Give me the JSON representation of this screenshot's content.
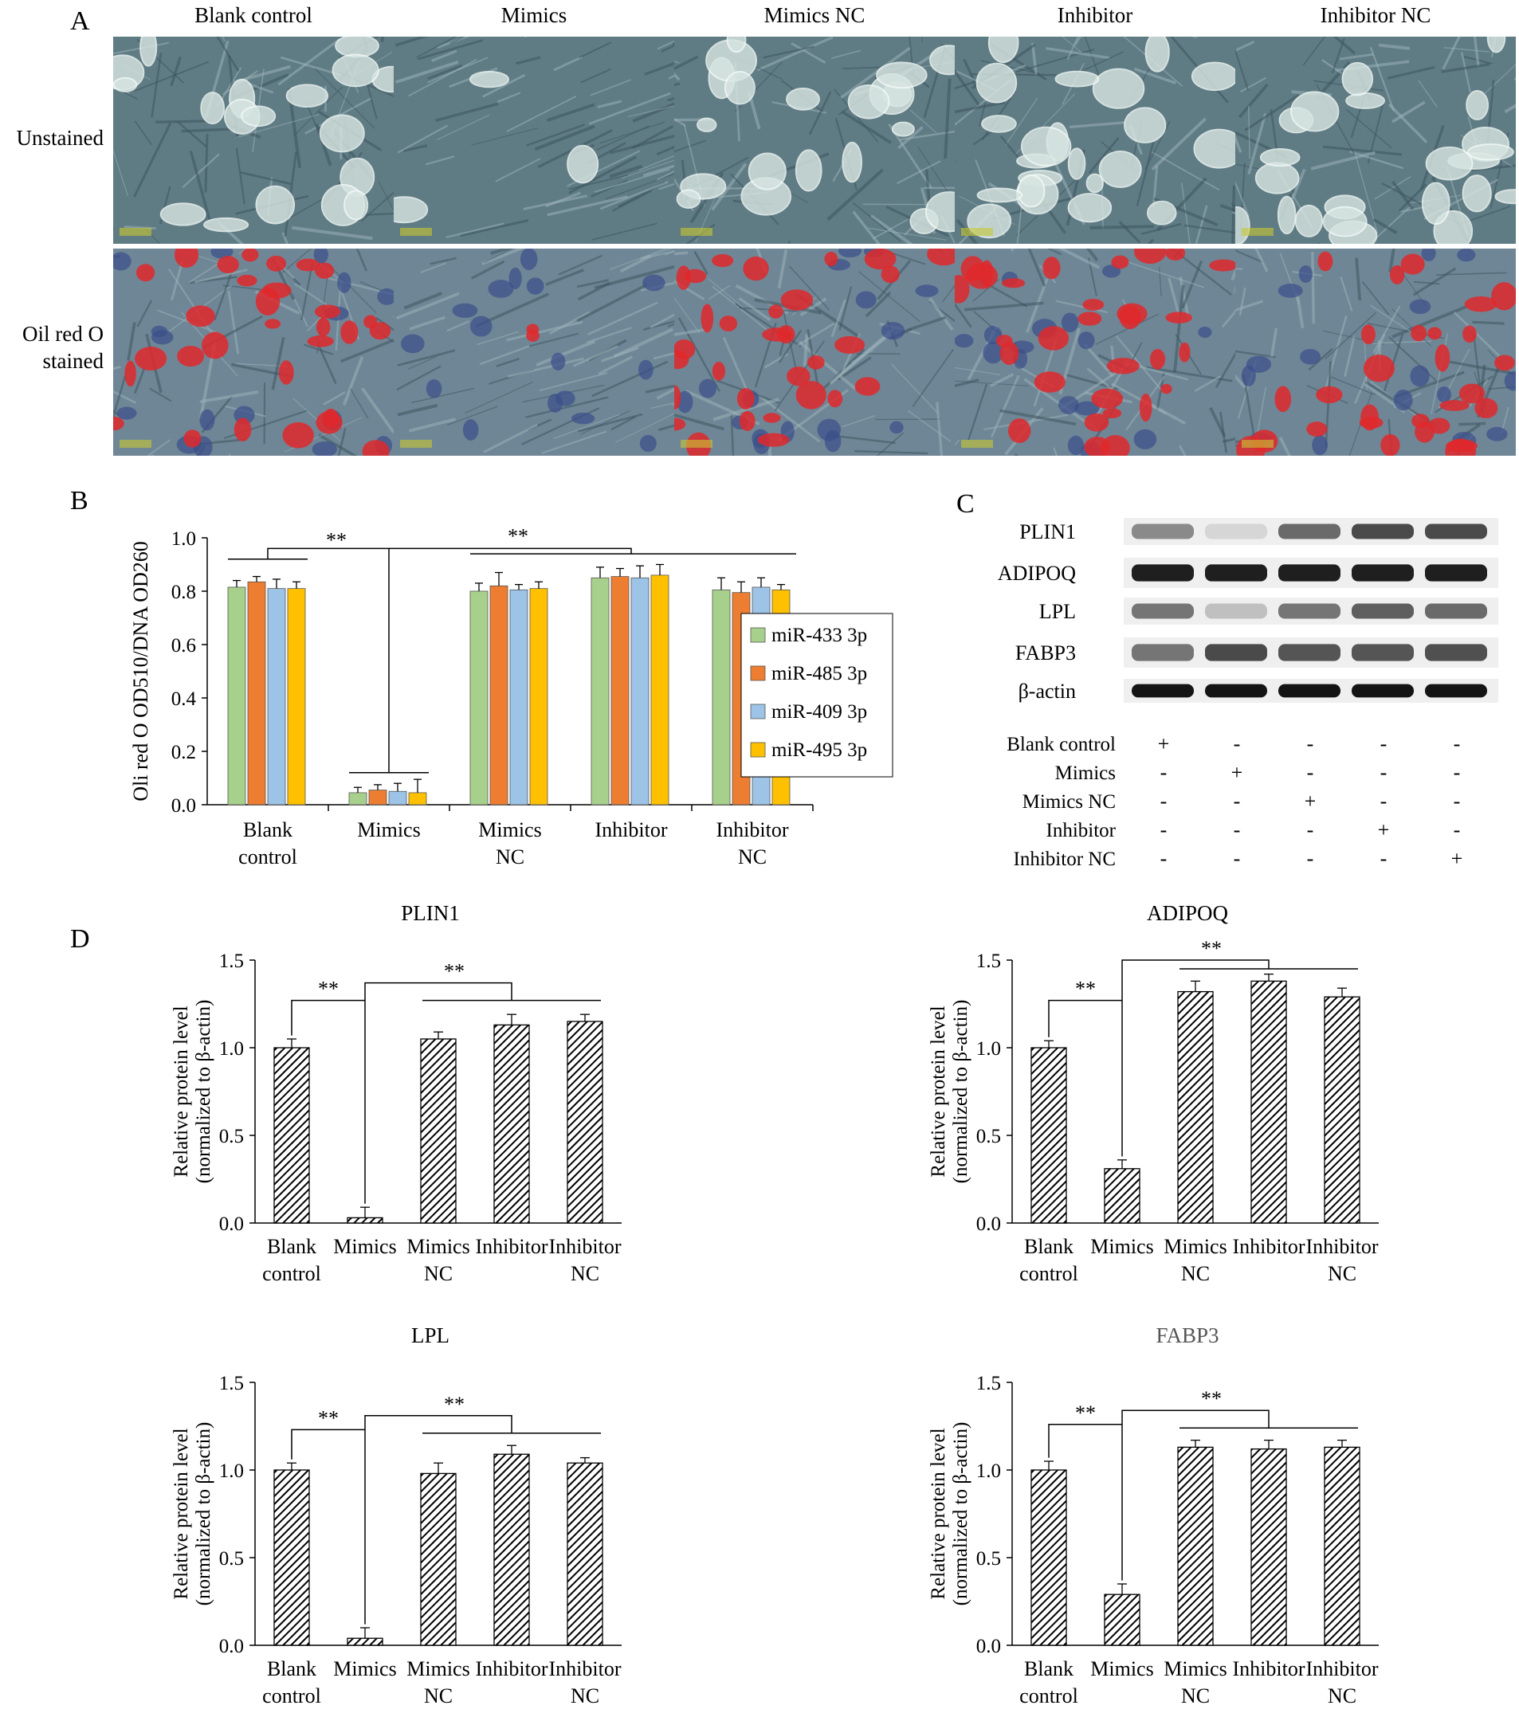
{
  "panels": {
    "a": "A",
    "b": "B",
    "c": "C",
    "d": "D"
  },
  "panel_a": {
    "columns": [
      "Blank control",
      "Mimics",
      "Mimics NC",
      "Inhibitor",
      "Inhibitor NC"
    ],
    "rows": [
      {
        "label_lines": [
          "Unstained"
        ]
      },
      {
        "label_lines": [
          "Oil red O",
          "stained"
        ]
      }
    ]
  },
  "chart_data": [
    {
      "type": "bar",
      "panel": "B",
      "ylabel": "Oli red O OD510/DNA OD260",
      "ylim": [
        0,
        1.0
      ],
      "yticks": [
        "0.0",
        "0.2",
        "0.4",
        "0.6",
        "0.8",
        "1.0"
      ],
      "categories": [
        [
          "Blank",
          "control"
        ],
        [
          "Mimics"
        ],
        [
          "Mimics",
          "NC"
        ],
        [
          "Inhibitor"
        ],
        [
          "Inhibitor",
          "NC"
        ]
      ],
      "series": [
        {
          "name": "miR-433 3p",
          "color": "#a8d08d",
          "values": [
            0.815,
            0.045,
            0.8,
            0.85,
            0.805
          ],
          "errors": [
            0.025,
            0.02,
            0.03,
            0.04,
            0.045
          ]
        },
        {
          "name": "miR-485 3p",
          "color": "#ed7d31",
          "values": [
            0.835,
            0.055,
            0.82,
            0.855,
            0.795
          ],
          "errors": [
            0.02,
            0.02,
            0.05,
            0.03,
            0.04
          ]
        },
        {
          "name": "miR-409 3p",
          "color": "#9dc3e6",
          "values": [
            0.81,
            0.05,
            0.805,
            0.85,
            0.815
          ],
          "errors": [
            0.035,
            0.03,
            0.02,
            0.045,
            0.035
          ]
        },
        {
          "name": "miR-495 3p",
          "color": "#ffc000",
          "values": [
            0.81,
            0.045,
            0.81,
            0.86,
            0.805
          ],
          "errors": [
            0.025,
            0.05,
            0.025,
            0.04,
            0.02
          ]
        }
      ],
      "significance": [
        {
          "label": "**",
          "from": 0,
          "to": 1
        },
        {
          "label": "**",
          "from": 1,
          "to": [
            2,
            3,
            4
          ]
        }
      ]
    },
    {
      "type": "bar",
      "panel": "D",
      "title": "PLIN1",
      "ylabel": "Relative protein level (normalized to β-actin)",
      "ylim": [
        0,
        1.5
      ],
      "yticks": [
        "0.0",
        "0.5",
        "1.0",
        "1.5"
      ],
      "categories": [
        [
          "Blank",
          "control"
        ],
        [
          "Mimics"
        ],
        [
          "Mimics",
          "NC"
        ],
        [
          "Inhibitor"
        ],
        [
          "Inhibitor",
          "NC"
        ]
      ],
      "values": [
        1.0,
        0.03,
        1.05,
        1.13,
        1.15
      ],
      "errors": [
        0.05,
        0.06,
        0.04,
        0.06,
        0.04
      ],
      "significance": [
        {
          "label": "**"
        },
        {
          "label": "**"
        }
      ]
    },
    {
      "type": "bar",
      "panel": "D",
      "title": "ADIPOQ",
      "ylabel": "Relative protein level (normalized to β-actin)",
      "ylim": [
        0,
        1.5
      ],
      "yticks": [
        "0.0",
        "0.5",
        "1.0",
        "1.5"
      ],
      "categories": [
        [
          "Blank",
          "control"
        ],
        [
          "Mimics"
        ],
        [
          "Mimics",
          "NC"
        ],
        [
          "Inhibitor"
        ],
        [
          "Inhibitor",
          "NC"
        ]
      ],
      "values": [
        1.0,
        0.31,
        1.32,
        1.38,
        1.29
      ],
      "errors": [
        0.04,
        0.05,
        0.06,
        0.04,
        0.05
      ],
      "significance": [
        {
          "label": "**"
        },
        {
          "label": "**"
        }
      ]
    },
    {
      "type": "bar",
      "panel": "D",
      "title": "LPL",
      "ylabel": "Relative protein level (normalized to β-actin)",
      "ylim": [
        0,
        1.5
      ],
      "yticks": [
        "0.0",
        "0.5",
        "1.0",
        "1.5"
      ],
      "categories": [
        [
          "Blank",
          "control"
        ],
        [
          "Mimics"
        ],
        [
          "Mimics",
          "NC"
        ],
        [
          "Inhibitor"
        ],
        [
          "Inhibitor",
          "NC"
        ]
      ],
      "values": [
        1.0,
        0.04,
        0.98,
        1.09,
        1.04
      ],
      "errors": [
        0.04,
        0.06,
        0.06,
        0.05,
        0.03
      ],
      "significance": [
        {
          "label": "**"
        },
        {
          "label": "**"
        }
      ]
    },
    {
      "type": "bar",
      "panel": "D",
      "title": "FABP3",
      "ylabel": "Relative protein level (normalized to β-actin)",
      "ylim": [
        0,
        1.5
      ],
      "yticks": [
        "0.0",
        "0.5",
        "1.0",
        "1.5"
      ],
      "categories": [
        [
          "Blank",
          "control"
        ],
        [
          "Mimics"
        ],
        [
          "Mimics",
          "NC"
        ],
        [
          "Inhibitor"
        ],
        [
          "Inhibitor",
          "NC"
        ]
      ],
      "values": [
        1.0,
        0.29,
        1.13,
        1.12,
        1.13
      ],
      "errors": [
        0.05,
        0.06,
        0.04,
        0.05,
        0.04
      ],
      "significance": [
        {
          "label": "**"
        },
        {
          "label": "**"
        }
      ]
    }
  ],
  "panel_c": {
    "proteins": [
      "PLIN1",
      "ADIPOQ",
      "LPL",
      "FABP3",
      "β-actin"
    ],
    "band_intensity": [
      [
        0.45,
        0.1,
        0.6,
        0.75,
        0.75
      ],
      [
        0.95,
        0.95,
        0.95,
        0.95,
        0.95
      ],
      [
        0.55,
        0.2,
        0.55,
        0.65,
        0.6
      ],
      [
        0.55,
        0.75,
        0.7,
        0.7,
        0.72
      ],
      [
        1.0,
        1.0,
        1.0,
        1.0,
        1.0
      ]
    ],
    "conditions": [
      "Blank control",
      "Mimics",
      "Mimics NC",
      "Inhibitor",
      "Inhibitor NC"
    ],
    "plus": "+",
    "minus": "-"
  }
}
